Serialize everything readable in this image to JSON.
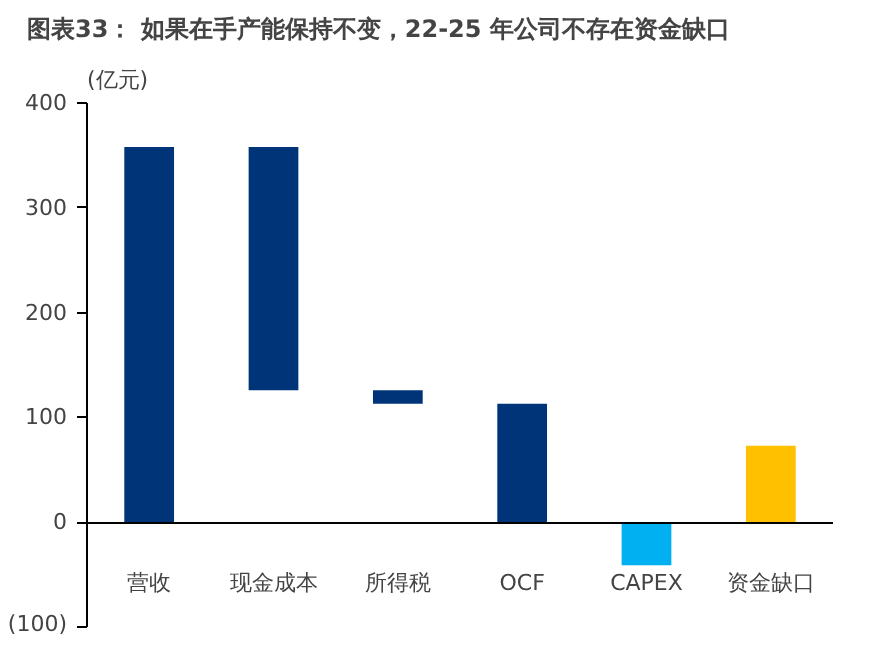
{
  "chart_data": {
    "type": "bar",
    "title": "图表33：  如果在手产能保持不变，22-25 年公司不存在资金缺口",
    "ylabel": "(亿元)",
    "categories": [
      "营收",
      "现金成本",
      "所得税",
      "OCF",
      "CAPEX",
      "资金缺口"
    ],
    "values": [
      358,
      232,
      13,
      113,
      -41,
      73
    ],
    "base": [
      0,
      126,
      113,
      0,
      0,
      0
    ],
    "colors": [
      "#003478",
      "#003478",
      "#003478",
      "#003478",
      "#00b0f0",
      "#ffc000"
    ],
    "ylim": [
      -100,
      400
    ],
    "yticks": [
      {
        "value": -100,
        "label": "(100)"
      },
      0,
      100,
      200,
      300,
      400
    ],
    "grid": false
  }
}
